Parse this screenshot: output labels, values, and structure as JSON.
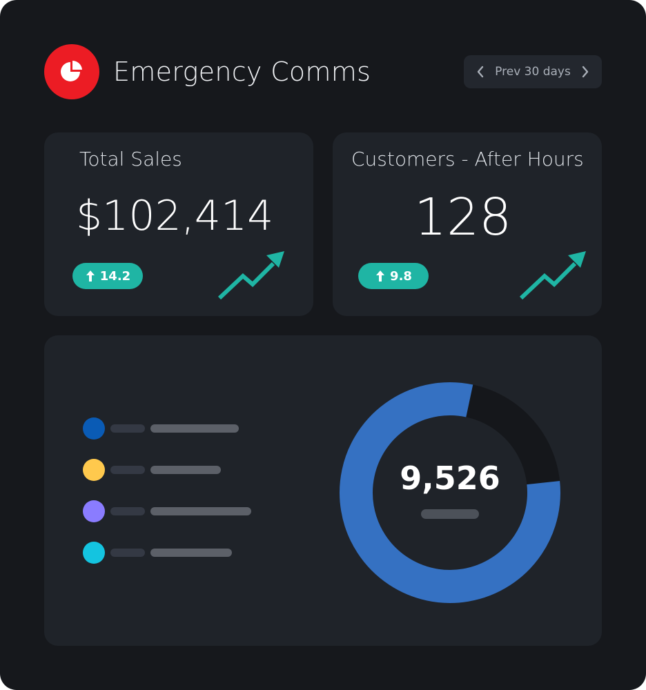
{
  "app": {
    "title": "Emergency Comms",
    "logo_icon": "pie-chart-icon",
    "brand_color": "#ec1c24"
  },
  "range_picker": {
    "label": "Prev 30 days",
    "prev_icon": "chevron-left-icon",
    "next_icon": "chevron-right-icon"
  },
  "cards": {
    "sales": {
      "title": "Total Sales",
      "value": "$102,414",
      "delta": "14.2",
      "delta_icon": "arrow-up-icon",
      "trend_icon": "trend-up-icon"
    },
    "customers": {
      "title": "Customers - After Hours",
      "value": "128",
      "delta": "9.8",
      "delta_icon": "arrow-up-icon",
      "trend_icon": "trend-up-icon"
    }
  },
  "breakdown": {
    "total": "9,526",
    "legend": [
      {
        "color": "#0a5bb5"
      },
      {
        "color": "#ffc94d"
      },
      {
        "color": "#8a7cff"
      },
      {
        "color": "#14c4e0"
      }
    ],
    "donut": {
      "filled_fraction": 0.8,
      "filled_color": "#3571c2",
      "track_color": "#15171b"
    }
  },
  "colors": {
    "accent_teal": "#1fb5a4",
    "background": "#16181c",
    "card": "#1f2329"
  }
}
